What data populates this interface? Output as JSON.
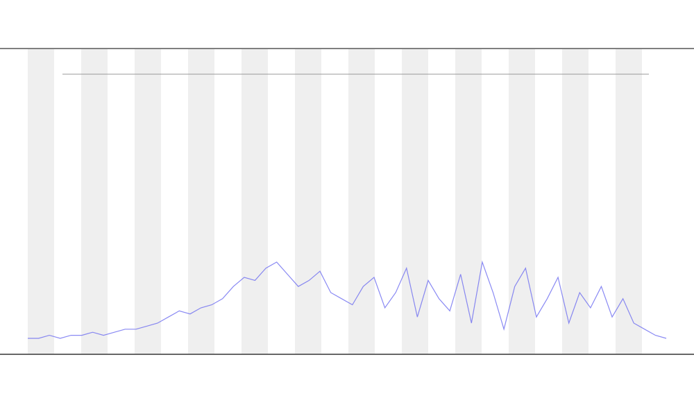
{
  "chart_data": {
    "type": "line",
    "categories": [
      null,
      null,
      null,
      null,
      null,
      null,
      null,
      null,
      null,
      null,
      null,
      null,
      null,
      null,
      null,
      null,
      null,
      null,
      null,
      null,
      null,
      null,
      null,
      null,
      null,
      null,
      null,
      null,
      null,
      null,
      null,
      null,
      null,
      null,
      null,
      null,
      null,
      null,
      null,
      null,
      null,
      null,
      null,
      null,
      null,
      null,
      null,
      null,
      null,
      null,
      null,
      null,
      null,
      null,
      null,
      null,
      null,
      null,
      null,
      null
    ],
    "values": [
      5,
      5,
      6,
      5,
      6,
      6,
      7,
      6,
      7,
      8,
      8,
      9,
      10,
      12,
      14,
      13,
      15,
      16,
      18,
      22,
      25,
      24,
      28,
      30,
      26,
      22,
      24,
      27,
      20,
      18,
      16,
      22,
      25,
      15,
      20,
      28,
      12,
      24,
      18,
      14,
      26,
      10,
      30,
      20,
      8,
      22,
      28,
      12,
      18,
      25,
      10,
      20,
      15,
      22,
      12,
      18,
      10,
      8,
      6,
      5
    ],
    "color": "#6b6bf0",
    "ylim": [
      0,
      100
    ]
  }
}
